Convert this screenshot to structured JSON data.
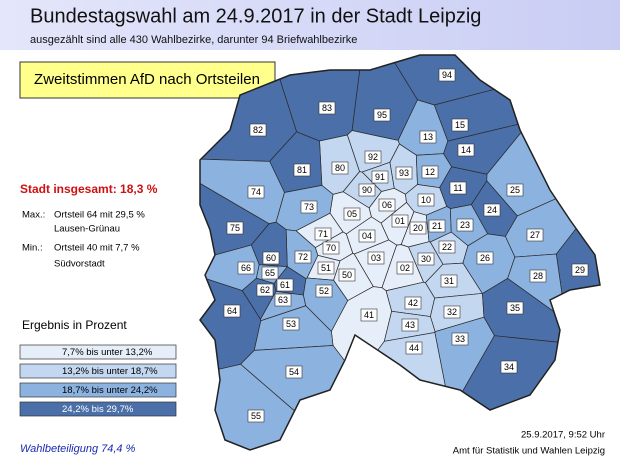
{
  "header": {
    "title": "Bundestagswahl am 24.9.2017 in der Stadt Leipzig",
    "subtitle": "ausgezählt sind alle 430 Wahlbezirke, darunter 94 Briefwahlbezirke"
  },
  "map_title": "Zweitstimmen AfD nach Ortsteilen",
  "summary": {
    "total": "Stadt insgesamt: 18,3 %",
    "max_label": "Max.:",
    "max_text": "Ortsteil 64 mit 29,5 %",
    "max_name": "Lausen-Grünau",
    "min_label": "Min.:",
    "min_text": "Ortsteil 40 mit 7,7 %",
    "min_name": "Südvorstadt"
  },
  "legend": {
    "title": "Ergebnis in Prozent",
    "items": [
      {
        "label": "7,7% bis unter 13,2%",
        "color": "#e6eef9"
      },
      {
        "label": "13,2% bis unter 18,7%",
        "color": "#c3d7f0"
      },
      {
        "label": "18,7% bis unter 24,2%",
        "color": "#8cb3e0"
      },
      {
        "label": "24,2% bis 29,7%",
        "color": "#4b6fa8"
      }
    ]
  },
  "districts": [
    {
      "label": "94",
      "color": "#4b6fa8"
    },
    {
      "label": "83",
      "color": "#4b6fa8"
    },
    {
      "label": "95",
      "color": "#4b6fa8"
    },
    {
      "label": "15",
      "color": "#4b6fa8"
    },
    {
      "label": "82",
      "color": "#4b6fa8"
    },
    {
      "label": "13",
      "color": "#8cb3e0"
    },
    {
      "label": "14",
      "color": "#4b6fa8"
    },
    {
      "label": "92",
      "color": "#c3d7f0"
    },
    {
      "label": "80",
      "color": "#c3d7f0"
    },
    {
      "label": "93",
      "color": "#c3d7f0"
    },
    {
      "label": "81",
      "color": "#4b6fa8"
    },
    {
      "label": "12",
      "color": "#8cb3e0"
    },
    {
      "label": "91",
      "color": "#c3d7f0"
    },
    {
      "label": "74",
      "color": "#8cb3e0"
    },
    {
      "label": "90",
      "color": "#c3d7f0"
    },
    {
      "label": "11",
      "color": "#4b6fa8"
    },
    {
      "label": "25",
      "color": "#8cb3e0"
    },
    {
      "label": "06",
      "color": "#e6eef9"
    },
    {
      "label": "10",
      "color": "#c3d7f0"
    },
    {
      "label": "73",
      "color": "#8cb3e0"
    },
    {
      "label": "05",
      "color": "#e6eef9"
    },
    {
      "label": "24",
      "color": "#4b6fa8"
    },
    {
      "label": "01",
      "color": "#e6eef9"
    },
    {
      "label": "20",
      "color": "#e6eef9"
    },
    {
      "label": "21",
      "color": "#8cb3e0"
    },
    {
      "label": "23",
      "color": "#8cb3e0"
    },
    {
      "label": "75",
      "color": "#4b6fa8"
    },
    {
      "label": "71",
      "color": "#e6eef9"
    },
    {
      "label": "04",
      "color": "#e6eef9"
    },
    {
      "label": "27",
      "color": "#8cb3e0"
    },
    {
      "label": "72",
      "color": "#8cb3e0"
    },
    {
      "label": "70",
      "color": "#e6eef9"
    },
    {
      "label": "22",
      "color": "#c3d7f0"
    },
    {
      "label": "60",
      "color": "#4b6fa8"
    },
    {
      "label": "03",
      "color": "#e6eef9"
    },
    {
      "label": "30",
      "color": "#c3d7f0"
    },
    {
      "label": "26",
      "color": "#8cb3e0"
    },
    {
      "label": "66",
      "color": "#8cb3e0"
    },
    {
      "label": "65",
      "color": "#8cb3e0"
    },
    {
      "label": "61",
      "color": "#4b6fa8"
    },
    {
      "label": "51",
      "color": "#e6eef9"
    },
    {
      "label": "02",
      "color": "#e6eef9"
    },
    {
      "label": "29",
      "color": "#4b6fa8"
    },
    {
      "label": "50",
      "color": "#e6eef9"
    },
    {
      "label": "28",
      "color": "#8cb3e0"
    },
    {
      "label": "31",
      "color": "#c3d7f0"
    },
    {
      "label": "62",
      "color": "#4b6fa8"
    },
    {
      "label": "63",
      "color": "#8cb3e0"
    },
    {
      "label": "52",
      "color": "#8cb3e0"
    },
    {
      "label": "64",
      "color": "#4b6fa8"
    },
    {
      "label": "42",
      "color": "#c3d7f0"
    },
    {
      "label": "32",
      "color": "#c3d7f0"
    },
    {
      "label": "35",
      "color": "#4b6fa8"
    },
    {
      "label": "41",
      "color": "#e6eef9"
    },
    {
      "label": "53",
      "color": "#8cb3e0"
    },
    {
      "label": "43",
      "color": "#c3d7f0"
    },
    {
      "label": "33",
      "color": "#8cb3e0"
    },
    {
      "label": "44",
      "color": "#c3d7f0"
    },
    {
      "label": "34",
      "color": "#4b6fa8"
    },
    {
      "label": "54",
      "color": "#8cb3e0"
    },
    {
      "label": "55",
      "color": "#8cb3e0"
    }
  ],
  "footer": {
    "turnout": "Wahlbeteiligung 74,4 %",
    "timestamp": "25.9.2017, 9:52 Uhr",
    "source": "Amt für Statistik und Wahlen Leipzig"
  }
}
